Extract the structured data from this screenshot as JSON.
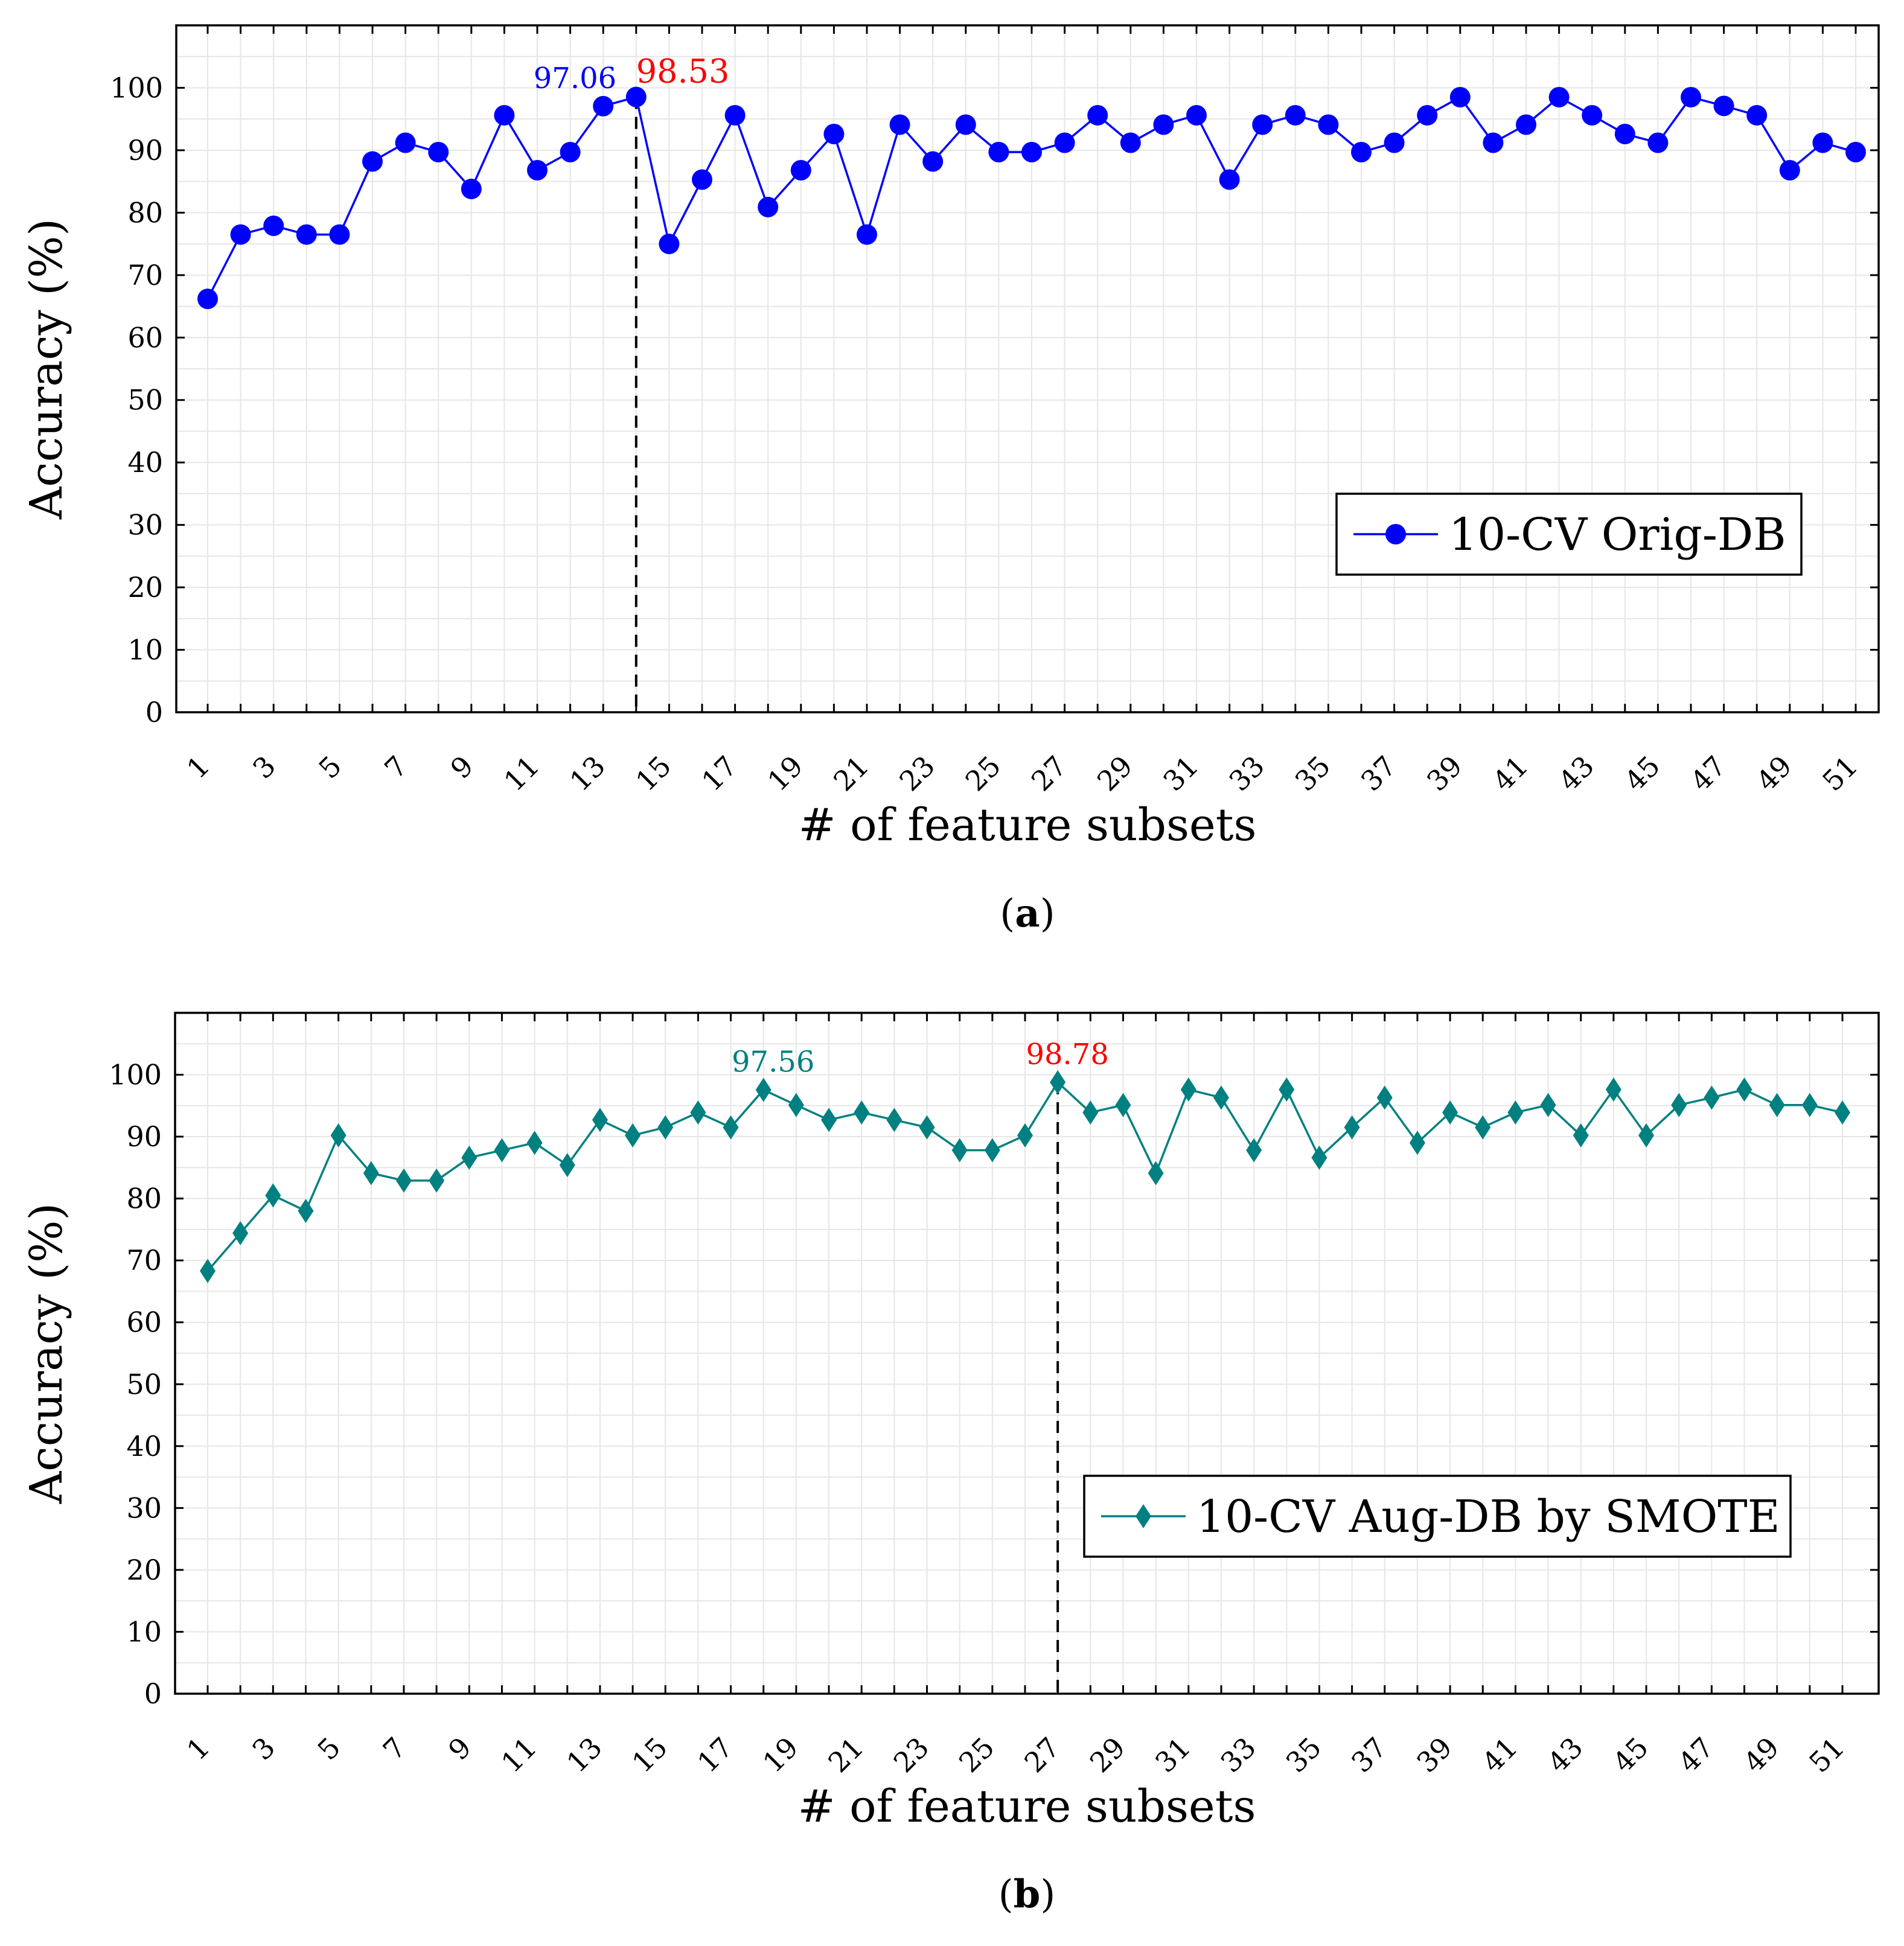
{
  "chart_data": [
    {
      "type": "line",
      "panel_label": "a",
      "xlabel": "# of feature subsets",
      "ylabel": "Accuracy (%)",
      "xlim": [
        1,
        51
      ],
      "ylim": [
        0,
        110
      ],
      "yticks": [
        0,
        10,
        20,
        30,
        40,
        50,
        60,
        70,
        80,
        90,
        100
      ],
      "xtick_labels": [
        "1",
        "3",
        "5",
        "7",
        "9",
        "11",
        "13",
        "15",
        "17",
        "19",
        "21",
        "23",
        "25",
        "27",
        "29",
        "31",
        "33",
        "35",
        "37",
        "39",
        "41",
        "43",
        "45",
        "47",
        "49",
        "51"
      ],
      "grid": true,
      "legend_position": "right-middle",
      "series": [
        {
          "name": "10-CV Orig-DB",
          "color": "#0000ff",
          "marker": "circle",
          "x": [
            1,
            2,
            3,
            4,
            5,
            6,
            7,
            8,
            9,
            10,
            11,
            12,
            13,
            14,
            15,
            16,
            17,
            18,
            19,
            20,
            21,
            22,
            23,
            24,
            25,
            26,
            27,
            28,
            29,
            30,
            31,
            32,
            33,
            34,
            35,
            36,
            37,
            38,
            39,
            40,
            41,
            42,
            43,
            44,
            45,
            46,
            47,
            48,
            49,
            50,
            51
          ],
          "values": [
            66.2,
            76.5,
            77.9,
            76.5,
            76.5,
            88.2,
            91.2,
            89.7,
            83.8,
            95.6,
            86.8,
            89.7,
            97.06,
            98.53,
            75.0,
            85.3,
            95.6,
            80.9,
            86.8,
            92.6,
            76.5,
            94.1,
            88.2,
            94.1,
            89.7,
            89.7,
            91.2,
            95.6,
            91.2,
            94.1,
            95.6,
            85.3,
            94.1,
            95.6,
            94.1,
            89.7,
            91.2,
            95.6,
            98.5,
            91.2,
            94.1,
            98.5,
            95.6,
            92.6,
            91.2,
            98.5,
            97.1,
            95.6,
            86.8,
            91.2,
            89.7
          ]
        }
      ],
      "annotations": [
        {
          "x": 13,
          "y": 97.06,
          "text": "97.06",
          "color": "#0000ff"
        },
        {
          "x": 14,
          "y": 98.53,
          "text": "98.53",
          "color": "#ff0000"
        }
      ],
      "vline_x": 14
    },
    {
      "type": "line",
      "panel_label": "b",
      "xlabel": "# of feature subsets",
      "ylabel": "Accuracy (%)",
      "xlim": [
        1,
        51
      ],
      "ylim": [
        0,
        110
      ],
      "yticks": [
        0,
        10,
        20,
        30,
        40,
        50,
        60,
        70,
        80,
        90,
        100
      ],
      "xtick_labels": [
        "1",
        "3",
        "5",
        "7",
        "9",
        "11",
        "13",
        "15",
        "17",
        "19",
        "21",
        "23",
        "25",
        "27",
        "29",
        "31",
        "33",
        "35",
        "37",
        "39",
        "41",
        "43",
        "45",
        "47",
        "49",
        "51"
      ],
      "grid": true,
      "legend_position": "lower-right",
      "series": [
        {
          "name": "10-CV Aug-DB by SMOTE",
          "color": "#008080",
          "marker": "diamond",
          "x": [
            1,
            2,
            3,
            4,
            5,
            6,
            7,
            8,
            9,
            10,
            11,
            12,
            13,
            14,
            15,
            16,
            17,
            18,
            19,
            20,
            21,
            22,
            23,
            24,
            25,
            26,
            27,
            28,
            29,
            30,
            31,
            32,
            33,
            34,
            35,
            36,
            37,
            38,
            39,
            40,
            41,
            42,
            43,
            44,
            45,
            46,
            47,
            48,
            49,
            50,
            51
          ],
          "values": [
            68.3,
            74.4,
            80.5,
            78.0,
            90.2,
            84.1,
            82.9,
            82.9,
            86.6,
            87.8,
            89.0,
            85.4,
            92.7,
            90.2,
            91.5,
            93.9,
            91.5,
            97.56,
            95.1,
            92.7,
            93.9,
            92.7,
            91.5,
            87.8,
            87.8,
            90.2,
            98.78,
            93.9,
            95.1,
            84.1,
            97.6,
            96.3,
            87.8,
            97.6,
            86.6,
            91.5,
            96.3,
            89.0,
            93.9,
            91.5,
            93.9,
            95.1,
            90.2,
            97.6,
            90.2,
            95.1,
            96.3,
            97.6,
            95.1,
            95.1,
            93.9
          ]
        }
      ],
      "annotations": [
        {
          "x": 18,
          "y": 97.56,
          "text": "97.56",
          "color": "#008080"
        },
        {
          "x": 27,
          "y": 98.78,
          "text": "98.78",
          "color": "#ff0000"
        }
      ],
      "vline_x": 27
    }
  ]
}
